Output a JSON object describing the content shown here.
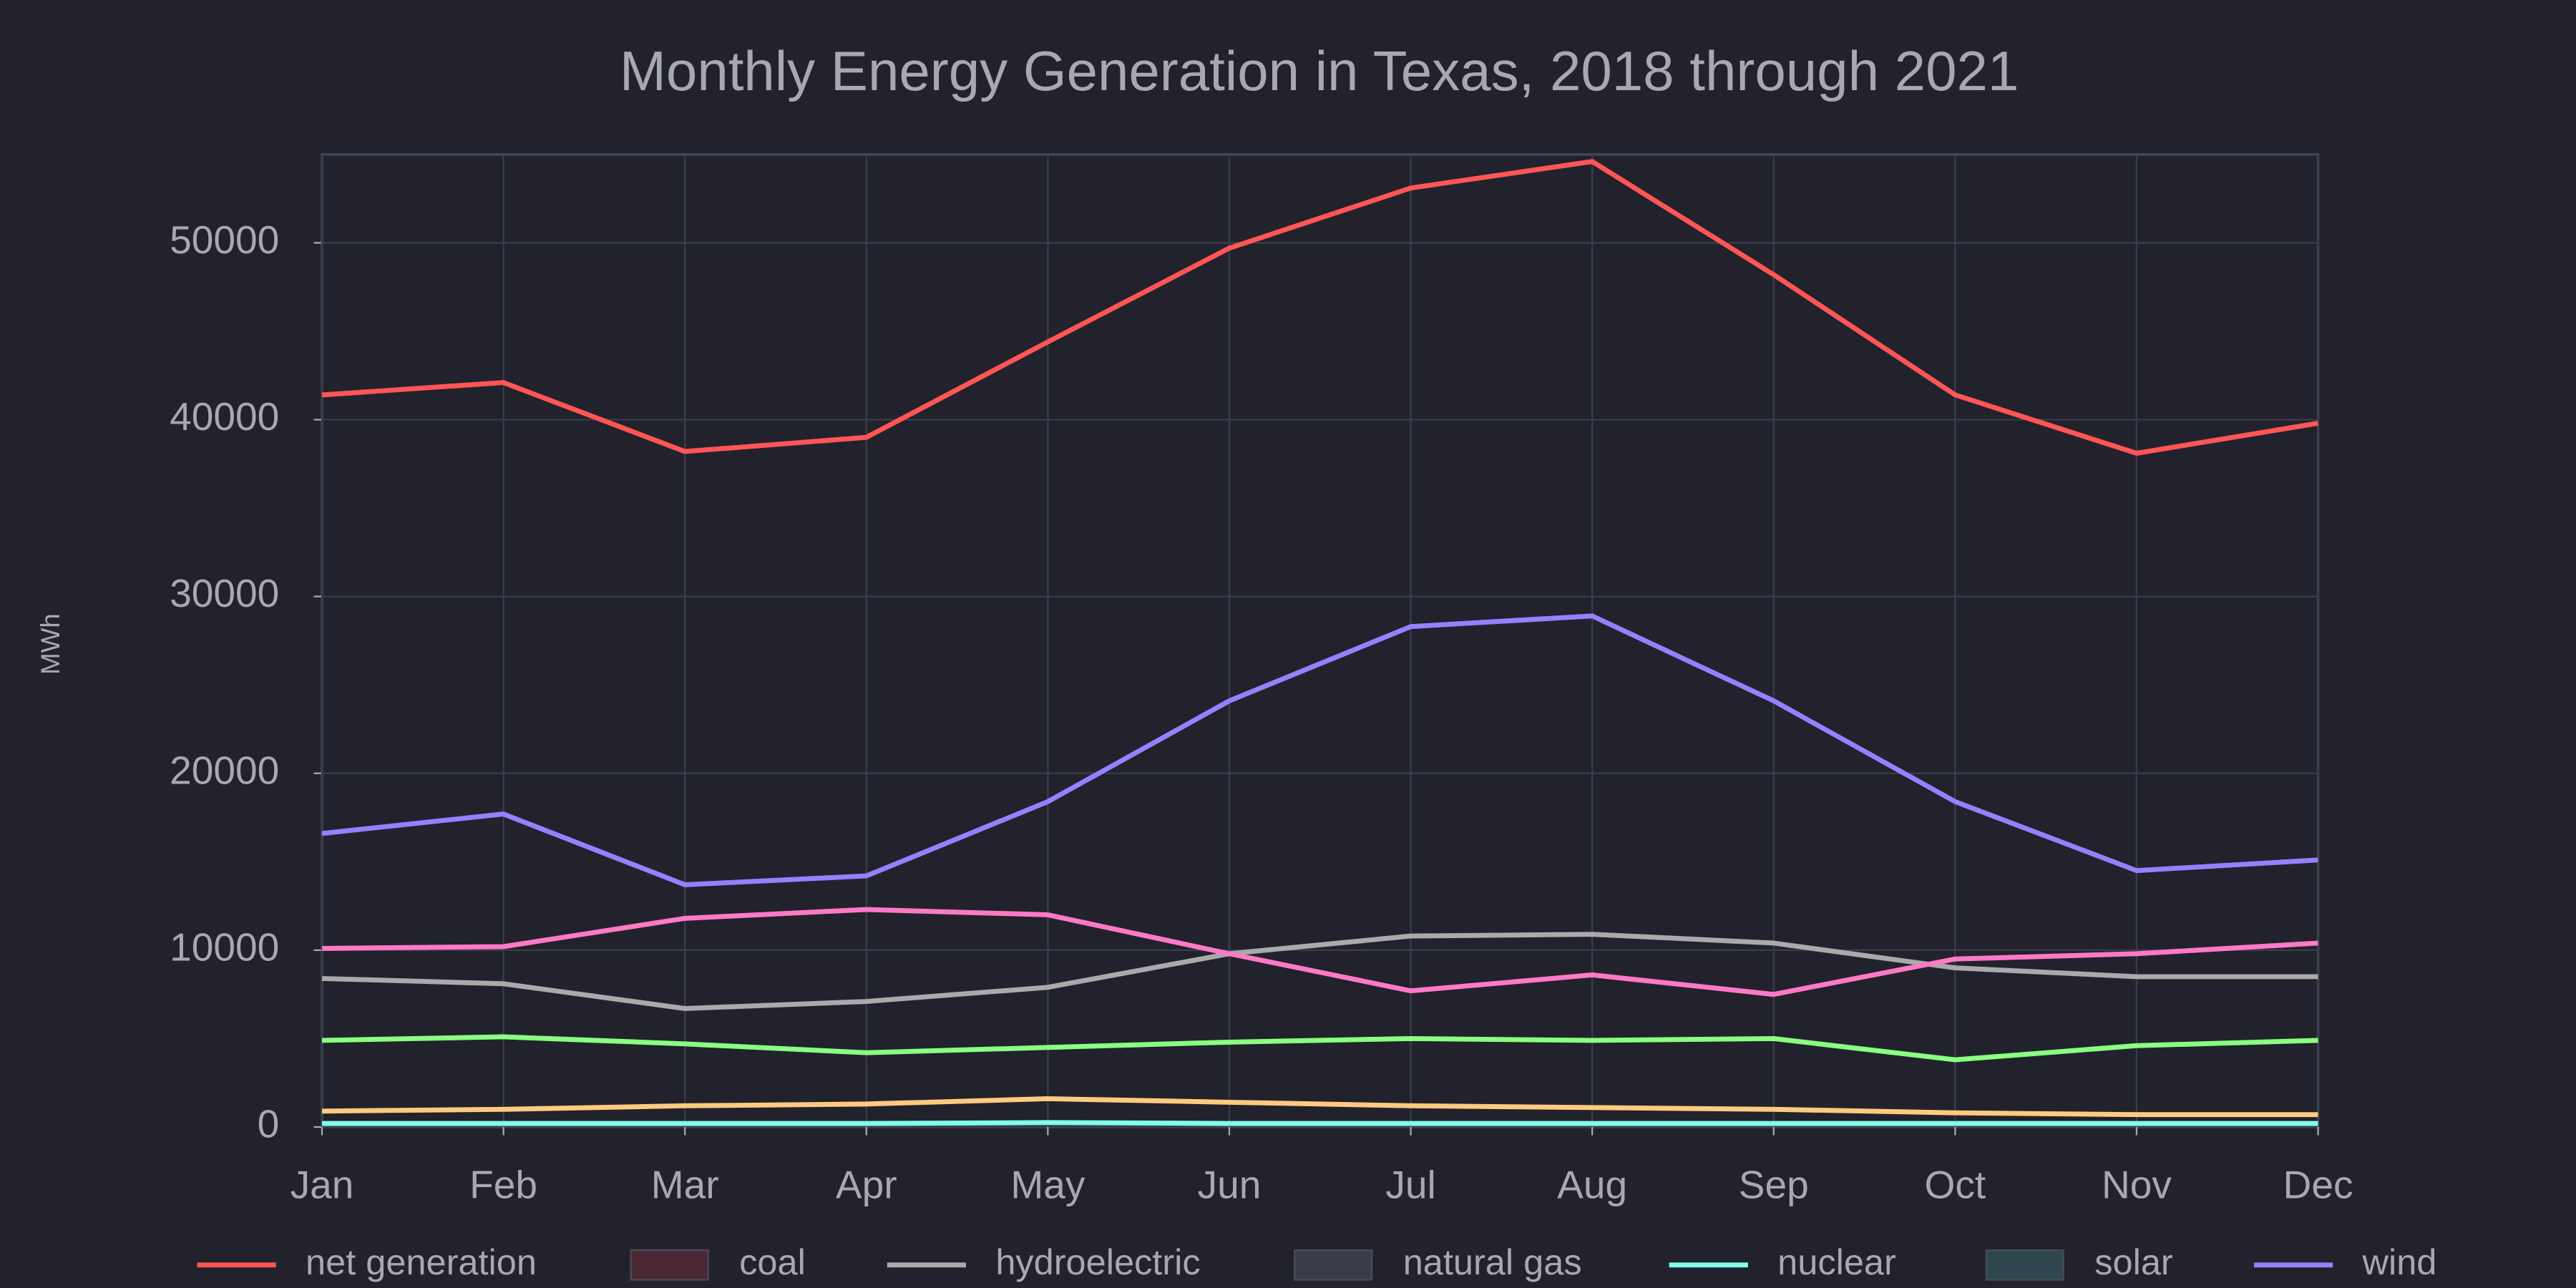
{
  "chart_data": {
    "type": "line",
    "title": "Monthly Energy Generation in Texas, 2018 through 2021",
    "y_label": "MWh",
    "categories": [
      "Jan",
      "Feb",
      "Mar",
      "Apr",
      "May",
      "Jun",
      "Jul",
      "Aug",
      "Sep",
      "Oct",
      "Nov",
      "Dec"
    ],
    "ylim": [
      0,
      55000
    ],
    "yticks": [
      0,
      10000,
      20000,
      30000,
      40000,
      50000
    ],
    "grid": true,
    "legend": "bottom",
    "series": [
      {
        "name": "net generation",
        "color": "#ff5555",
        "values": [
          41400,
          42100,
          38200,
          39000,
          44400,
          49700,
          53100,
          54600,
          48200,
          41400,
          38100,
          39800
        ]
      },
      {
        "name": "coal",
        "color": "#4a2733",
        "kind": "patch"
      },
      {
        "name": "hydroelectric",
        "color": "#aaaaaa",
        "values": [
          8400,
          8100,
          6700,
          7100,
          7900,
          9800,
          10800,
          10900,
          10400,
          9000,
          8500,
          8500
        ]
      },
      {
        "name": "natural gas",
        "color": "#3b3c49",
        "kind": "patch"
      },
      {
        "name": "nuclear",
        "color": "#80ffea",
        "values": [
          200,
          200,
          200,
          200,
          250,
          200,
          200,
          200,
          200,
          200,
          200,
          200
        ]
      },
      {
        "name": "solar",
        "color": "#2f4850",
        "kind": "patch"
      },
      {
        "name": "wind",
        "color": "#9580ff",
        "values": [
          16600,
          17700,
          13700,
          14200,
          18400,
          24100,
          28300,
          28900,
          24100,
          18400,
          14500,
          15100
        ]
      },
      {
        "color": "#ff79c6",
        "values": [
          10100,
          10200,
          11800,
          12300,
          12000,
          9800,
          7700,
          8600,
          7500,
          9500,
          9800,
          10400
        ]
      },
      {
        "color": "#8aff80",
        "values": [
          4900,
          5100,
          4700,
          4200,
          4500,
          4800,
          5000,
          4900,
          5000,
          3800,
          4600,
          4900
        ]
      },
      {
        "color": "#ffca80",
        "values": [
          900,
          1000,
          1200,
          1300,
          1600,
          1400,
          1200,
          1100,
          1000,
          800,
          700,
          700
        ]
      }
    ]
  }
}
